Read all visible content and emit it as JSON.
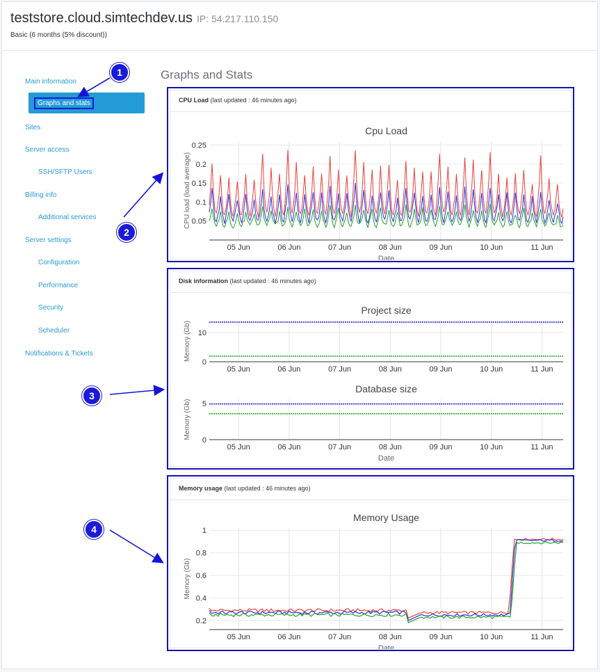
{
  "header": {
    "title": "teststore.cloud.simtechdev.us",
    "ip": "IP: 54.217.110.150",
    "plan": "Basic (6 months (5% discount))"
  },
  "sidebar": {
    "items": [
      {
        "label": "Main information"
      },
      {
        "label": "Graphs and stats",
        "active": true
      },
      {
        "label": "Sites"
      },
      {
        "label": "Server access"
      },
      {
        "label": "SSH/SFTP Users"
      },
      {
        "label": "Billing info"
      },
      {
        "label": "Additional services"
      },
      {
        "label": "Server settings"
      },
      {
        "label": "Configuration"
      },
      {
        "label": "Performance"
      },
      {
        "label": "Security"
      },
      {
        "label": "Scheduler"
      },
      {
        "label": "Notifications & Tickets"
      }
    ]
  },
  "main": {
    "section_title": "Graphs and Stats",
    "panels": [
      {
        "title": "CPU Load",
        "updated": "(last updated : 46 minutes ago)"
      },
      {
        "title": "Disk information",
        "updated": "(last updated : 46 minutes ago)"
      },
      {
        "title": "Memory usage",
        "updated": "(last updated : 46 minutes ago)"
      }
    ]
  },
  "callouts": [
    "1",
    "2",
    "3",
    "4"
  ],
  "colors": {
    "accent": "#239bd5",
    "link": "#2b9ad6",
    "annotation": "#1414b4",
    "series_red": "#e8413a",
    "series_blue": "#2a2ee0",
    "series_green": "#22a02a"
  },
  "chart_data": [
    {
      "type": "line",
      "title": "Cpu Load",
      "xlabel": "Date",
      "ylabel": "CPU load (load average)",
      "x_ticks": [
        "05 Jun",
        "06 Jun",
        "07 Jun",
        "08 Jun",
        "09 Jun",
        "10 Jun",
        "11 Jun"
      ],
      "y_ticks": [
        0.05,
        0.1,
        0.15,
        0.2,
        0.25
      ],
      "ylim": [
        0.0,
        0.26
      ],
      "x_range_days": [
        4.42,
        11.42
      ],
      "grid": true,
      "series": [
        {
          "color": "#e8413a",
          "peaks": [
            0.2,
            0.17,
            0.16,
            0.15,
            0.17,
            0.16,
            0.23,
            0.19,
            0.17,
            0.24,
            0.2,
            0.17,
            0.19,
            0.18,
            0.22,
            0.18,
            0.17,
            0.24,
            0.2,
            0.18,
            0.19,
            0.2,
            0.16,
            0.21,
            0.19,
            0.18,
            0.18,
            0.23,
            0.19,
            0.17,
            0.22,
            0.21,
            0.18,
            0.23,
            0.17,
            0.17,
            0.17,
            0.18,
            0.15,
            0.22,
            0.16,
            0.15
          ],
          "base": 0.06
        },
        {
          "color": "#2a2ee0",
          "peaks": [
            0.14,
            0.11,
            0.12,
            0.11,
            0.12,
            0.11,
            0.14,
            0.12,
            0.12,
            0.15,
            0.13,
            0.12,
            0.13,
            0.12,
            0.14,
            0.12,
            0.12,
            0.15,
            0.13,
            0.12,
            0.13,
            0.13,
            0.11,
            0.14,
            0.13,
            0.12,
            0.12,
            0.14,
            0.13,
            0.12,
            0.14,
            0.13,
            0.12,
            0.14,
            0.12,
            0.12,
            0.12,
            0.12,
            0.11,
            0.13,
            0.11,
            0.1
          ],
          "base": 0.045
        },
        {
          "color": "#22a02a",
          "peaks": [
            0.08,
            0.07,
            0.07,
            0.07,
            0.07,
            0.07,
            0.09,
            0.08,
            0.07,
            0.09,
            0.08,
            0.08,
            0.08,
            0.08,
            0.09,
            0.08,
            0.07,
            0.09,
            0.08,
            0.08,
            0.08,
            0.08,
            0.07,
            0.09,
            0.08,
            0.08,
            0.08,
            0.09,
            0.08,
            0.07,
            0.09,
            0.08,
            0.08,
            0.09,
            0.07,
            0.07,
            0.07,
            0.08,
            0.07,
            0.08,
            0.07,
            0.06
          ],
          "base": 0.035
        }
      ]
    },
    {
      "type": "line",
      "title": "Project size",
      "xlabel": "",
      "ylabel": "Memory (Gb)",
      "x_ticks": [
        "05 Jun",
        "06 Jun",
        "07 Jun",
        "08 Jun",
        "09 Jun",
        "10 Jun",
        "11 Jun"
      ],
      "y_ticks": [
        0,
        10
      ],
      "ylim": [
        0,
        14
      ],
      "x_range_days": [
        4.42,
        11.42
      ],
      "grid": true,
      "series": [
        {
          "color": "#2a2ee0",
          "values": [
            13.5,
            13.5
          ]
        },
        {
          "color": "#22a02a",
          "values": [
            1.9,
            1.9
          ]
        }
      ]
    },
    {
      "type": "line",
      "title": "Database size",
      "xlabel": "Date",
      "ylabel": "Memory (Gb)",
      "x_ticks": [
        "05 Jun",
        "06 Jun",
        "07 Jun",
        "08 Jun",
        "09 Jun",
        "10 Jun",
        "11 Jun"
      ],
      "y_ticks": [
        0,
        5
      ],
      "ylim": [
        0,
        5.6
      ],
      "x_range_days": [
        4.42,
        11.42
      ],
      "grid": true,
      "series": [
        {
          "color": "#2a2ee0",
          "values": [
            4.95,
            4.95
          ]
        },
        {
          "color": "#22a02a",
          "values": [
            3.6,
            3.6
          ]
        }
      ]
    },
    {
      "type": "line",
      "title": "Memory Usage",
      "xlabel": "Date",
      "ylabel": "Memory (Gb)",
      "x_ticks": [
        "05 Jun",
        "06 Jun",
        "07 Jun",
        "08 Jun",
        "09 Jun",
        "10 Jun",
        "11 Jun"
      ],
      "y_ticks": [
        0.2,
        0.4,
        0.6,
        0.8,
        1
      ],
      "ylim": [
        0.12,
        1.02
      ],
      "x_range_days": [
        4.42,
        11.42
      ],
      "grid": true,
      "series": [
        {
          "color": "#e8413a",
          "level_before": 0.29,
          "level_after": 0.92
        },
        {
          "color": "#2a2ee0",
          "level_before": 0.27,
          "level_after": 0.91
        },
        {
          "color": "#22a02a",
          "level_before": 0.25,
          "level_after": 0.89
        }
      ],
      "step_day": 10.4,
      "dip_day": 8.35
    }
  ]
}
